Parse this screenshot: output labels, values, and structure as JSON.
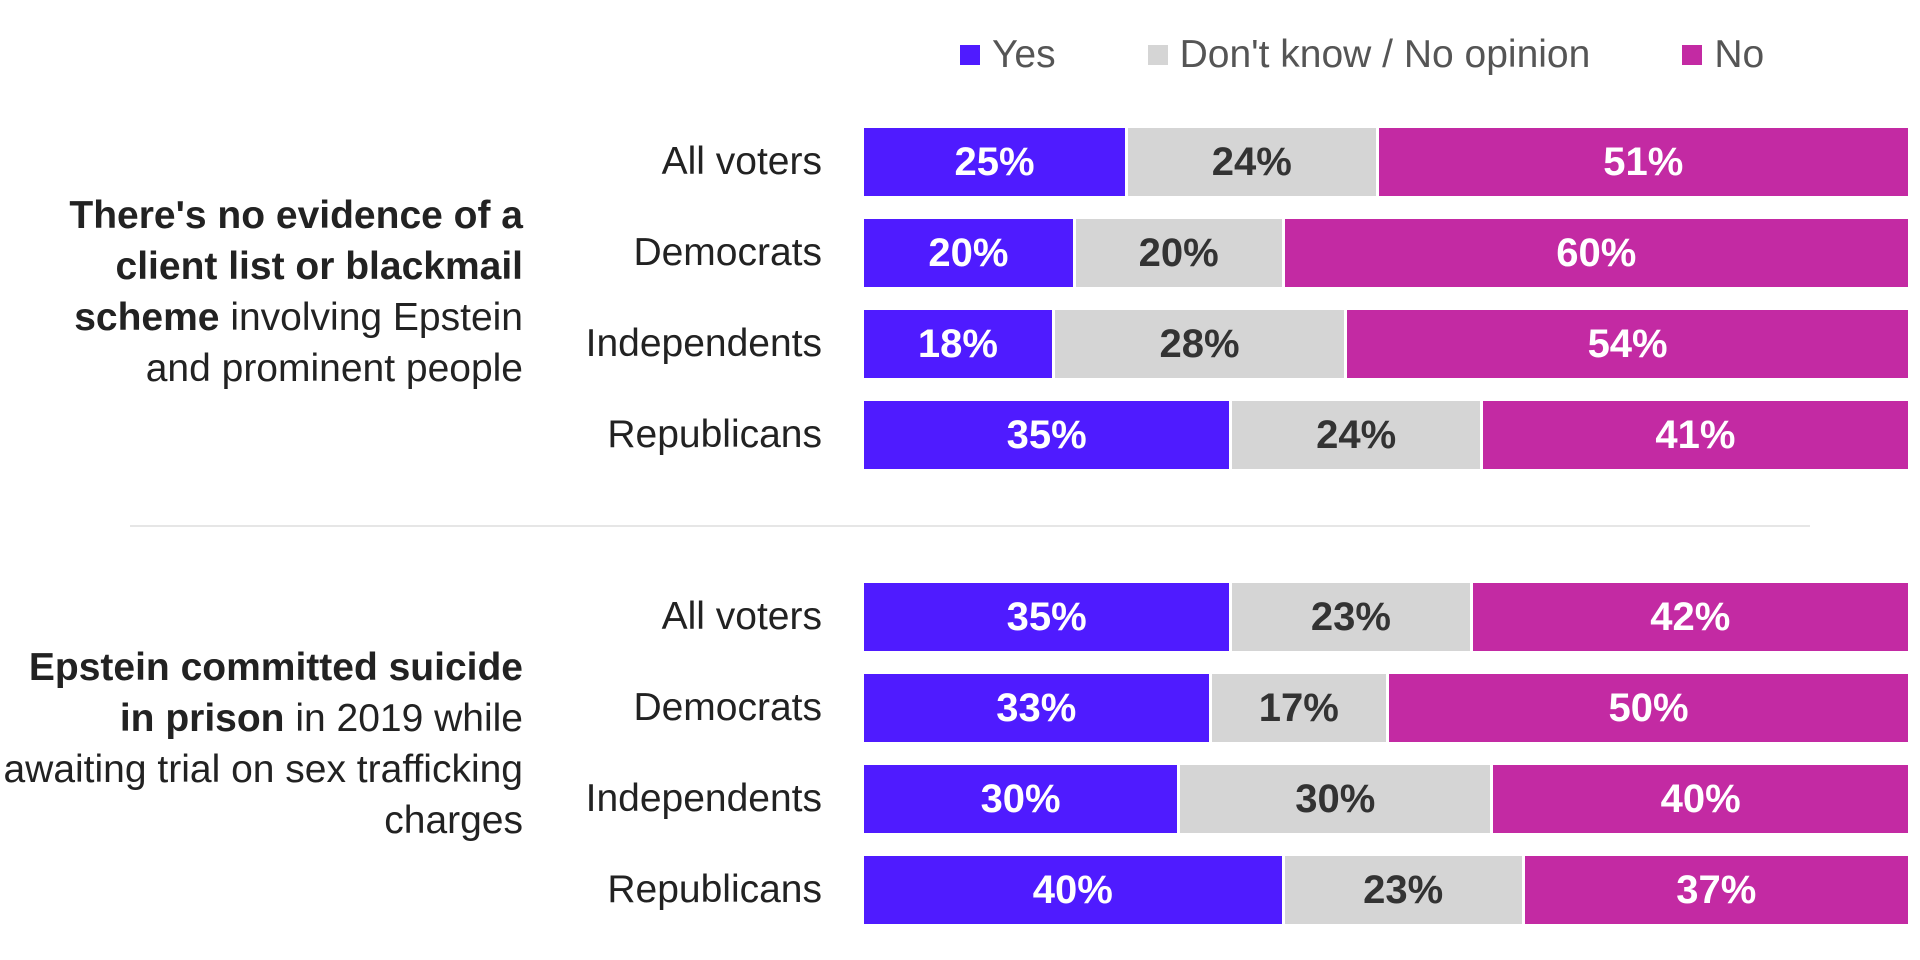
{
  "chart_data": {
    "type": "bar",
    "orientation": "horizontal",
    "stacked": true,
    "xlim": [
      0,
      100
    ],
    "legend": [
      {
        "name": "Yes",
        "color": "#4f1bff",
        "text_color": "#ffffff"
      },
      {
        "name": "Don't know / No opinion",
        "color": "#d5d5d5",
        "text_color": "#333333"
      },
      {
        "name": "No",
        "color": "#c32aa3",
        "text_color": "#ffffff"
      }
    ],
    "legend_position": "top-right",
    "groups": [
      {
        "title_bold": "There's no evidence of a client list or blackmail scheme",
        "title_rest": " involving Epstein and prominent people",
        "categories": [
          "All voters",
          "Democrats",
          "Independents",
          "Republicans"
        ],
        "series": [
          {
            "name": "Yes",
            "values": [
              25,
              20,
              18,
              35
            ],
            "labels": [
              "25%",
              "20%",
              "18%",
              "35%"
            ]
          },
          {
            "name": "Don't know / No opinion",
            "values": [
              24,
              20,
              28,
              24
            ],
            "labels": [
              "24%",
              "20%",
              "28%",
              "24%"
            ]
          },
          {
            "name": "No",
            "values": [
              51,
              60,
              54,
              41
            ],
            "labels": [
              "51%",
              "60%",
              "54%",
              "41%"
            ]
          }
        ]
      },
      {
        "title_bold": "Epstein committed suicide in prison",
        "title_rest": " in 2019 while awaiting trial on sex trafficking charges",
        "categories": [
          "All voters",
          "Democrats",
          "Independents",
          "Republicans"
        ],
        "series": [
          {
            "name": "Yes",
            "values": [
              35,
              33,
              30,
              40
            ],
            "labels": [
              "35%",
              "33%",
              "30%",
              "40%"
            ]
          },
          {
            "name": "Don't know / No opinion",
            "values": [
              23,
              17,
              30,
              23
            ],
            "labels": [
              "23%",
              "17%",
              "30%",
              "23%"
            ]
          },
          {
            "name": "No",
            "values": [
              42,
              50,
              40,
              37
            ],
            "labels": [
              "42%",
              "50%",
              "40%",
              "37%"
            ]
          }
        ]
      }
    ]
  }
}
